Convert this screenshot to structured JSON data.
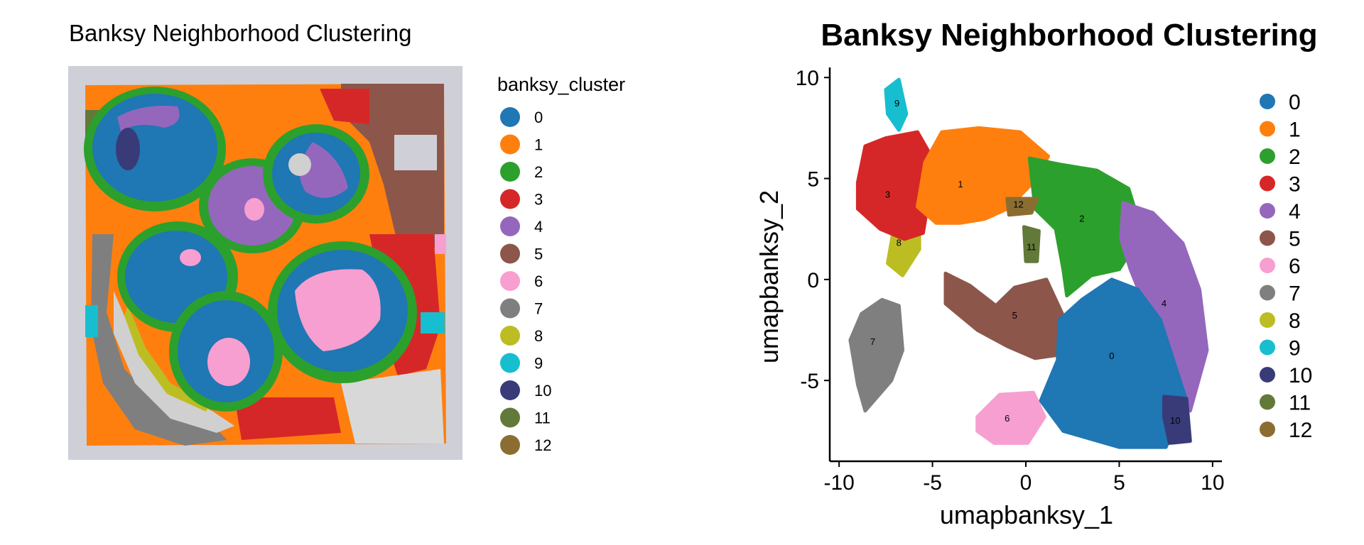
{
  "chart_data": [
    {
      "type": "scatter",
      "subtype": "spatial-cluster-map",
      "title": "Banksy Neighborhood Clustering",
      "legend_title": "banksy_cluster",
      "legend_position": "right",
      "grid": false,
      "axes_visible": false,
      "categories": [
        "0",
        "1",
        "2",
        "3",
        "4",
        "5",
        "6",
        "7",
        "8",
        "9",
        "10",
        "11",
        "12"
      ],
      "background_color": "#cfcfd8"
    },
    {
      "type": "scatter",
      "subtype": "umap",
      "title": "Banksy Neighborhood Clustering",
      "xlabel": "umapbanksy_1",
      "ylabel": "umapbanksy_2",
      "xlim": [
        -10.5,
        10.5
      ],
      "ylim": [
        -9,
        10.5
      ],
      "xticks": [
        -10,
        -5,
        0,
        5,
        10
      ],
      "yticks": [
        -5,
        0,
        5,
        10
      ],
      "xtick_labels": [
        "-10",
        "-5",
        "0",
        "5",
        "10"
      ],
      "ytick_labels": [
        "-5",
        "0",
        "5",
        "10"
      ],
      "grid": false,
      "legend_position": "right",
      "series": [
        {
          "name": "0",
          "centroid": [
            4.6,
            -3.8
          ]
        },
        {
          "name": "1",
          "centroid": [
            -3.5,
            4.7
          ]
        },
        {
          "name": "2",
          "centroid": [
            3.0,
            3.0
          ]
        },
        {
          "name": "3",
          "centroid": [
            -7.4,
            4.2
          ]
        },
        {
          "name": "4",
          "centroid": [
            7.4,
            -1.2
          ]
        },
        {
          "name": "5",
          "centroid": [
            -0.6,
            -1.8
          ]
        },
        {
          "name": "6",
          "centroid": [
            -1.0,
            -6.9
          ]
        },
        {
          "name": "7",
          "centroid": [
            -8.2,
            -3.1
          ]
        },
        {
          "name": "8",
          "centroid": [
            -6.8,
            1.8
          ]
        },
        {
          "name": "9",
          "centroid": [
            -6.9,
            8.7
          ]
        },
        {
          "name": "10",
          "centroid": [
            8.0,
            -7.0
          ]
        },
        {
          "name": "11",
          "centroid": [
            0.3,
            1.6
          ]
        },
        {
          "name": "12",
          "centroid": [
            -0.4,
            3.7
          ]
        }
      ]
    }
  ],
  "palette": [
    "#1f77b4",
    "#ff7f0e",
    "#2ca02c",
    "#d62728",
    "#9467bd",
    "#8c564b",
    "#f79fd0",
    "#7f7f7f",
    "#bcbd22",
    "#17becf",
    "#393b79",
    "#637939",
    "#8c6d31"
  ],
  "legend_labels": [
    "0",
    "1",
    "2",
    "3",
    "4",
    "5",
    "6",
    "7",
    "8",
    "9",
    "10",
    "11",
    "12"
  ]
}
